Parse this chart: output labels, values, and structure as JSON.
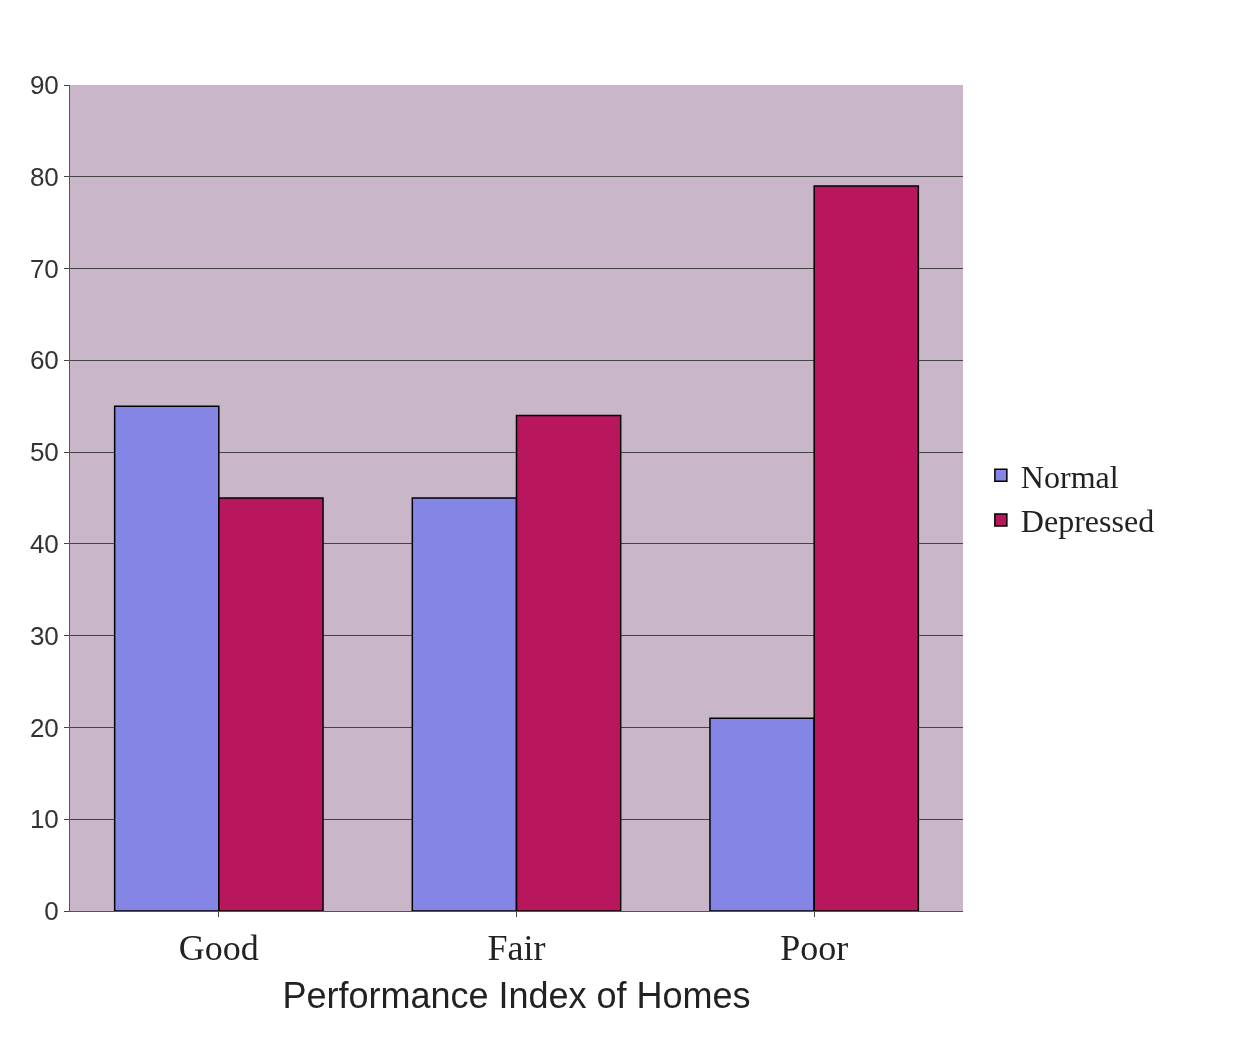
{
  "chart_data": {
    "type": "bar",
    "xlabel": "Performance Index of Homes",
    "categories": [
      "Good",
      "Fair",
      "Poor"
    ],
    "series": [
      {
        "name": "Normal",
        "color": "#8585e6",
        "values": [
          55,
          45,
          21
        ]
      },
      {
        "name": "Depressed",
        "color": "#b8175e",
        "values": [
          45,
          54,
          79
        ]
      }
    ],
    "ylim": [
      0,
      90
    ],
    "yticks": [
      0,
      10,
      20,
      30,
      40,
      50,
      60,
      70,
      80,
      90
    ],
    "grid": "y",
    "legend": "right"
  }
}
